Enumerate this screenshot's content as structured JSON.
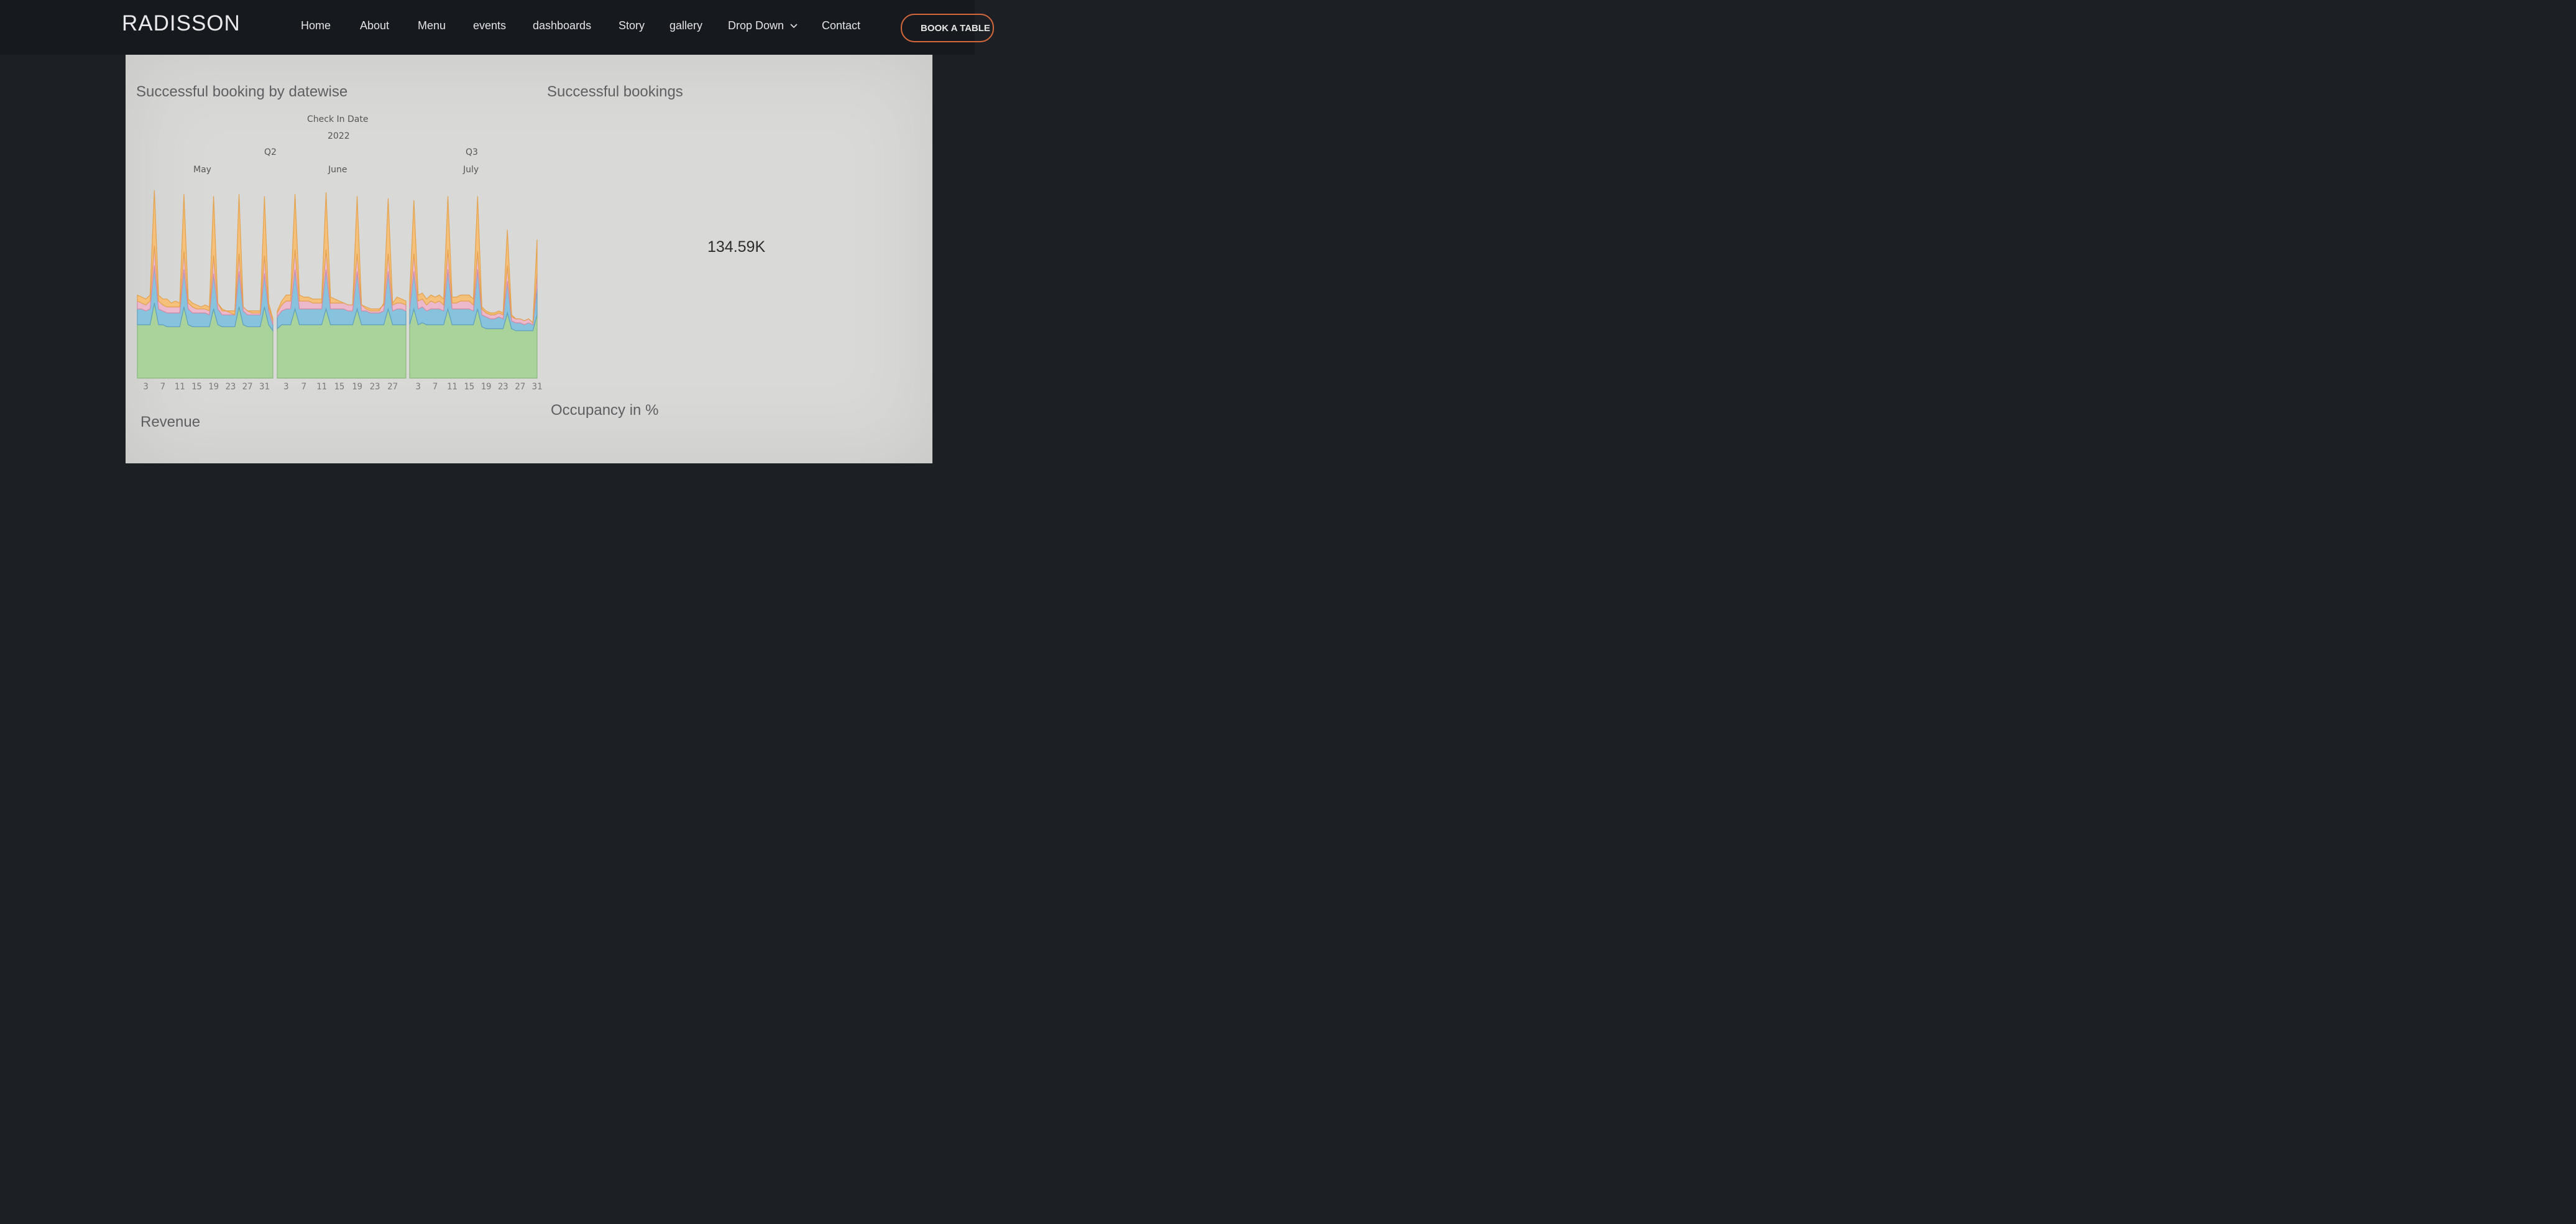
{
  "nav": {
    "brand": "RADISSON",
    "items": [
      "Home",
      "About",
      "Menu",
      "events",
      "dashboards",
      "Story",
      "gallery",
      "Drop Down",
      "Contact"
    ],
    "book_label": "BOOK A TABLE"
  },
  "dashboard": {
    "booking_title": "Successful booking by datewise",
    "kpi_title": "Successful bookings",
    "kpi_value": "134.59K",
    "revenue_title": "Revenue",
    "occupancy_title": "Occupancy in %"
  },
  "chart_data": {
    "type": "area",
    "stacked": true,
    "headers": {
      "axis_title": "Check In Date",
      "year": "2022",
      "quarters": [
        "Q2",
        "Q3"
      ],
      "months": [
        "May",
        "June",
        "July"
      ]
    },
    "series_colors": [
      "#a9d39a",
      "#88c3dd",
      "#ebb9cb",
      "#f5c07a"
    ],
    "panels": [
      {
        "month": "May",
        "ticks": [
          "3",
          "7",
          "11",
          "15",
          "19",
          "23",
          "27",
          "31"
        ],
        "peaks": [
          4,
          11,
          18,
          24,
          31
        ],
        "total": [
          0.42,
          0.41,
          0.4,
          0.42,
          0.95,
          0.42,
          0.4,
          0.4,
          0.38,
          0.39,
          0.38,
          0.93,
          0.4,
          0.38,
          0.37,
          0.36,
          0.37,
          0.36,
          0.92,
          0.38,
          0.35,
          0.34,
          0.33,
          0.32,
          0.93,
          0.36,
          0.34,
          0.33,
          0.33,
          0.33,
          0.92,
          0.38,
          0.3
        ],
        "layers": [
          [
            0.27,
            0.27,
            0.27,
            0.27,
            0.38,
            0.27,
            0.27,
            0.26,
            0.26,
            0.26,
            0.26,
            0.36,
            0.27,
            0.26,
            0.26,
            0.26,
            0.26,
            0.26,
            0.35,
            0.27,
            0.26,
            0.26,
            0.26,
            0.26,
            0.36,
            0.27,
            0.26,
            0.26,
            0.26,
            0.26,
            0.36,
            0.27,
            0.24
          ],
          [
            0.08,
            0.08,
            0.07,
            0.08,
            0.19,
            0.08,
            0.07,
            0.07,
            0.07,
            0.07,
            0.07,
            0.19,
            0.08,
            0.07,
            0.07,
            0.07,
            0.07,
            0.06,
            0.18,
            0.08,
            0.06,
            0.06,
            0.06,
            0.06,
            0.18,
            0.07,
            0.06,
            0.06,
            0.06,
            0.06,
            0.17,
            0.07,
            0.03
          ],
          [
            0.04,
            0.03,
            0.03,
            0.04,
            0.1,
            0.04,
            0.03,
            0.03,
            0.03,
            0.03,
            0.03,
            0.09,
            0.03,
            0.03,
            0.02,
            0.02,
            0.02,
            0.02,
            0.09,
            0.03,
            0.02,
            0.02,
            0.02,
            0.02,
            0.09,
            0.02,
            0.02,
            0.02,
            0.02,
            0.02,
            0.09,
            0.02,
            0.02
          ],
          [
            0.03,
            0.03,
            0.03,
            0.03,
            0.28,
            0.03,
            0.03,
            0.04,
            0.02,
            0.03,
            0.02,
            0.29,
            0.02,
            0.02,
            0.02,
            0.01,
            0.02,
            0.02,
            0.3,
            0.0,
            0.01,
            0.0,
            -0.01,
            -0.02,
            0.3,
            0.0,
            0.0,
            -0.01,
            -0.01,
            -0.01,
            0.3,
            0.02,
            0.01
          ]
        ]
      },
      {
        "month": "June",
        "ticks": [
          "3",
          "7",
          "11",
          "15",
          "19",
          "23",
          "27"
        ],
        "peaks": [
          4,
          11,
          18,
          25
        ],
        "total": [
          0.34,
          0.39,
          0.42,
          0.42,
          0.93,
          0.42,
          0.41,
          0.41,
          0.4,
          0.4,
          0.4,
          0.94,
          0.41,
          0.4,
          0.39,
          0.38,
          0.37,
          0.37,
          0.92,
          0.37,
          0.35,
          0.34,
          0.34,
          0.34,
          0.38,
          0.91,
          0.38,
          0.41,
          0.4,
          0.39
        ],
        "layers": [
          [
            0.25,
            0.27,
            0.27,
            0.27,
            0.35,
            0.27,
            0.27,
            0.27,
            0.27,
            0.27,
            0.27,
            0.35,
            0.27,
            0.27,
            0.27,
            0.27,
            0.27,
            0.27,
            0.35,
            0.27,
            0.27,
            0.27,
            0.27,
            0.27,
            0.27,
            0.35,
            0.27,
            0.27,
            0.27,
            0.27
          ],
          [
            0.06,
            0.07,
            0.08,
            0.08,
            0.2,
            0.08,
            0.08,
            0.08,
            0.08,
            0.08,
            0.08,
            0.2,
            0.08,
            0.08,
            0.08,
            0.08,
            0.07,
            0.07,
            0.19,
            0.07,
            0.07,
            0.06,
            0.06,
            0.06,
            0.07,
            0.19,
            0.07,
            0.08,
            0.08,
            0.07
          ],
          [
            0.02,
            0.03,
            0.04,
            0.04,
            0.1,
            0.04,
            0.04,
            0.04,
            0.03,
            0.03,
            0.03,
            0.1,
            0.03,
            0.03,
            0.03,
            0.03,
            0.03,
            0.03,
            0.09,
            0.03,
            0.02,
            0.02,
            0.02,
            0.02,
            0.03,
            0.09,
            0.03,
            0.03,
            0.03,
            0.03
          ],
          [
            0.01,
            0.02,
            0.03,
            0.03,
            0.28,
            0.03,
            0.02,
            0.02,
            0.02,
            0.02,
            0.02,
            0.29,
            0.03,
            0.02,
            0.01,
            0.0,
            0.0,
            0.0,
            0.29,
            0.0,
            -0.01,
            -0.01,
            -0.01,
            -0.01,
            0.01,
            0.28,
            0.01,
            0.03,
            0.02,
            0.02
          ]
        ]
      },
      {
        "month": "July",
        "ticks": [
          "3",
          "7",
          "11",
          "15",
          "19",
          "23",
          "27",
          "31"
        ],
        "peaks": [
          2,
          9,
          16,
          23,
          30
        ],
        "total": [
          0.42,
          0.9,
          0.42,
          0.43,
          0.4,
          0.42,
          0.41,
          0.42,
          0.4,
          0.92,
          0.41,
          0.41,
          0.42,
          0.42,
          0.42,
          0.4,
          0.92,
          0.36,
          0.34,
          0.33,
          0.33,
          0.34,
          0.33,
          0.75,
          0.32,
          0.3,
          0.3,
          0.29,
          0.3,
          0.28,
          0.7
        ],
        "layers": [
          [
            0.27,
            0.35,
            0.27,
            0.28,
            0.27,
            0.27,
            0.27,
            0.27,
            0.27,
            0.35,
            0.27,
            0.27,
            0.27,
            0.27,
            0.27,
            0.27,
            0.35,
            0.26,
            0.25,
            0.25,
            0.25,
            0.25,
            0.25,
            0.33,
            0.25,
            0.24,
            0.24,
            0.24,
            0.24,
            0.24,
            0.32
          ],
          [
            0.08,
            0.19,
            0.08,
            0.08,
            0.07,
            0.08,
            0.08,
            0.08,
            0.07,
            0.2,
            0.08,
            0.08,
            0.08,
            0.08,
            0.08,
            0.07,
            0.2,
            0.06,
            0.06,
            0.05,
            0.05,
            0.06,
            0.05,
            0.16,
            0.04,
            0.04,
            0.04,
            0.03,
            0.04,
            0.03,
            0.14
          ],
          [
            0.04,
            0.09,
            0.04,
            0.04,
            0.03,
            0.04,
            0.03,
            0.04,
            0.03,
            0.1,
            0.03,
            0.03,
            0.04,
            0.04,
            0.04,
            0.03,
            0.09,
            0.03,
            0.02,
            0.02,
            0.02,
            0.02,
            0.02,
            0.08,
            0.02,
            0.02,
            0.02,
            0.02,
            0.02,
            0.01,
            0.07
          ],
          [
            0.03,
            0.27,
            0.03,
            0.03,
            0.03,
            0.03,
            0.03,
            0.03,
            0.03,
            0.27,
            0.03,
            0.03,
            0.03,
            0.03,
            0.03,
            0.03,
            0.28,
            0.01,
            0.01,
            0.01,
            0.01,
            0.01,
            0.01,
            0.18,
            0.01,
            0.0,
            0.0,
            0.0,
            0.0,
            0.0,
            0.17
          ]
        ]
      }
    ]
  }
}
